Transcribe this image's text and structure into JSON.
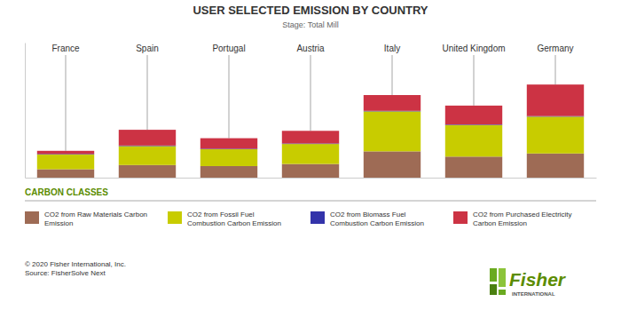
{
  "chart_data": {
    "type": "bar",
    "stacked": true,
    "title": "USER SELECTED EMISSION BY COUNTRY",
    "subtitle": "Stage: Total Mill",
    "categories": [
      "France",
      "Spain",
      "Portugal",
      "Austria",
      "Italy",
      "United Kingdom",
      "Germany"
    ],
    "series": [
      {
        "name": "CO2 from Raw Materials Carbon\nEmission",
        "color": "#9E6B55",
        "values": [
          0.8,
          1.2,
          1.1,
          1.3,
          2.5,
          2.0,
          2.3
        ]
      },
      {
        "name": "CO2 from Fossil Fuel\nCombustion Carbon Emission",
        "color": "#C8CC00",
        "values": [
          1.4,
          1.8,
          1.6,
          1.9,
          3.8,
          3.0,
          3.5
        ]
      },
      {
        "name": "CO2 from Biomass Fuel\nCombustion Carbon Emission",
        "color": "#3333AA",
        "values": [
          0.05,
          0.05,
          0.05,
          0.05,
          0.05,
          0.05,
          0.05
        ]
      },
      {
        "name": "CO2 from Purchased Electricity\nCarbon Emission",
        "color": "#CC3344",
        "values": [
          0.3,
          1.5,
          1.0,
          1.2,
          1.5,
          1.8,
          3.0
        ]
      }
    ],
    "ylim": [
      0,
      12.8325
    ],
    "tick_labels": false,
    "grid": false,
    "legend": "bottom",
    "annotations": [
      "CARBON CLASSES",
      "© 2020 Fisher International, Inc.\nSource: FisherSolve Next",
      "Fisher",
      "INTERNATIONAL"
    ]
  }
}
